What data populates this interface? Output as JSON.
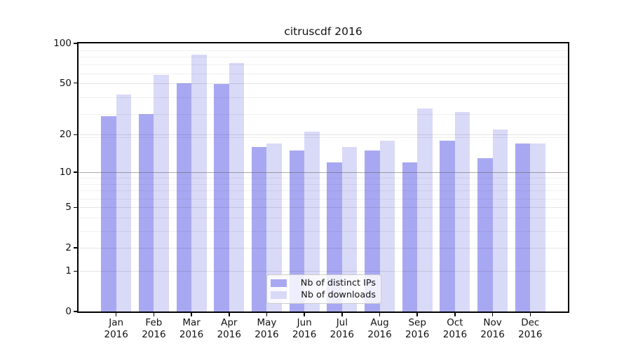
{
  "title": "citruscdf 2016",
  "colors": {
    "distinct_ips": "#a8a8f2",
    "downloads": "#d9d9f8",
    "grid_minor": "rgba(0,0,0,0.06)",
    "grid_major": "rgba(0,0,0,0.10)",
    "grid_major_dark": "rgba(90,90,90,0.50)",
    "spine": "#000000"
  },
  "legend": {
    "items": [
      {
        "label": "Nb of distinct IPs",
        "series": "distinct_ips"
      },
      {
        "label": "Nb of downloads",
        "series": "downloads"
      }
    ]
  },
  "y_axis": {
    "tick_values": [
      100,
      50,
      20,
      10,
      5,
      2,
      1,
      0
    ],
    "tick_labels": [
      "100",
      "50",
      "20",
      "10",
      "5",
      "2",
      "1",
      "0"
    ]
  },
  "chart_data": {
    "type": "bar",
    "title": "citruscdf 2016",
    "categories": [
      "Jan 2016",
      "Feb 2016",
      "Mar 2016",
      "Apr 2016",
      "May 2016",
      "Jun 2016",
      "Jul 2016",
      "Aug 2016",
      "Sep 2016",
      "Oct 2016",
      "Nov 2016",
      "Dec 2016"
    ],
    "series": [
      {
        "name": "Nb of distinct IPs",
        "key": "distinct_ips",
        "values": [
          28,
          29,
          50,
          49,
          16,
          15,
          12,
          15,
          12,
          18,
          13,
          17
        ]
      },
      {
        "name": "Nb of downloads",
        "key": "downloads",
        "values": [
          41,
          58,
          82,
          71,
          17,
          21,
          16,
          18,
          32,
          30,
          22,
          17
        ]
      }
    ],
    "xlabel": "",
    "ylabel": "",
    "yscale": "log(value+1)",
    "ylim": [
      0,
      100
    ],
    "y_ticks": [
      0,
      1,
      2,
      5,
      10,
      20,
      50,
      100
    ],
    "grid": true,
    "legend_position": "lower center"
  }
}
